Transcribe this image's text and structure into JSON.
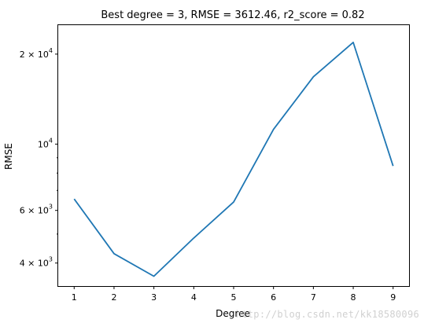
{
  "chart_data": {
    "type": "line",
    "title": "Best degree = 3, RMSE = 3612.46, r2_score = 0.82",
    "xlabel": "Degree",
    "ylabel": "RMSE",
    "yscale": "log",
    "xlim": [
      0.6,
      9.4
    ],
    "ylim": [
      3350,
      25000
    ],
    "x": [
      1,
      2,
      3,
      4,
      5,
      6,
      7,
      8,
      9
    ],
    "series": [
      {
        "values": [
          6550,
          4300,
          3612.46,
          4850,
          6400,
          11200,
          16800,
          21900,
          8450
        ],
        "color": "#1f77b4"
      }
    ],
    "x_ticks": [
      "1",
      "2",
      "3",
      "4",
      "5",
      "6",
      "7",
      "8",
      "9"
    ],
    "y_major_ticks": [
      {
        "value": 4000,
        "mantissa": "4",
        "times": "×",
        "base": "10",
        "exp": "3"
      },
      {
        "value": 6000,
        "mantissa": "6",
        "times": "×",
        "base": "10",
        "exp": "3"
      },
      {
        "value": 10000,
        "mantissa": "",
        "times": "",
        "base": "10",
        "exp": "4"
      },
      {
        "value": 20000,
        "mantissa": "2",
        "times": "×",
        "base": "10",
        "exp": "4"
      }
    ],
    "y_minor_ticks": [
      5000,
      7000,
      8000,
      9000
    ],
    "grid": false
  },
  "watermark": "http://blog.csdn.net/kk18580096"
}
